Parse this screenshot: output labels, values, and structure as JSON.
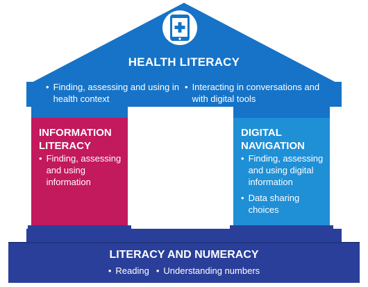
{
  "roof": {
    "title": "HEALTH LITERACY",
    "bullets": [
      "Finding, assessing and using in health context",
      "Interacting in conversations and with digital tools"
    ],
    "icon": "tablet-medical-cross-icon"
  },
  "left_pillar": {
    "title": "INFORMATION LITERACY",
    "bullets": [
      "Finding, assessing and using information"
    ]
  },
  "right_pillar": {
    "title": "DIGITAL NAVIGATION",
    "bullets": [
      "Finding, assessing and using digital information",
      "Data sharing choices"
    ]
  },
  "base": {
    "title": "LITERACY AND NUMERACY",
    "bullets": [
      "Reading",
      "Understanding numbers"
    ]
  },
  "bullet_char": "•",
  "colors": {
    "roof": "#1673c7",
    "roof_dark": "#0c5aa8",
    "left_pillar": "#c3195d",
    "right_pillar": "#1f8fd6",
    "base": "#2a3f9a",
    "base_dark": "#21357f",
    "text": "#ffffff"
  }
}
